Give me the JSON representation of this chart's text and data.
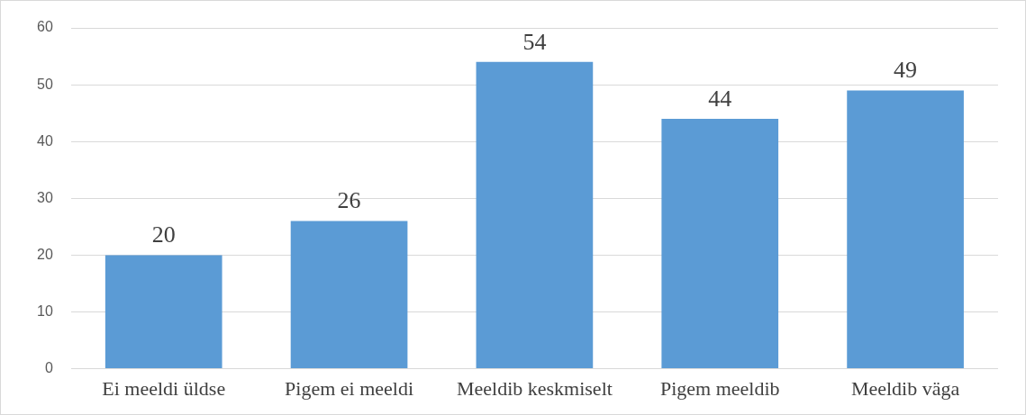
{
  "chart_data": {
    "type": "bar",
    "categories": [
      "Ei meeldi üldse",
      "Pigem ei meeldi",
      "Meeldib keskmiselt",
      "Pigem meeldib",
      "Meeldib väga"
    ],
    "values": [
      20,
      26,
      54,
      44,
      49
    ],
    "color": "#5b9bd5",
    "ylim": [
      0,
      60
    ],
    "yticks": [
      0,
      10,
      20,
      30,
      40,
      50,
      60
    ],
    "grid": "y",
    "data_labels": true,
    "legend": false
  }
}
